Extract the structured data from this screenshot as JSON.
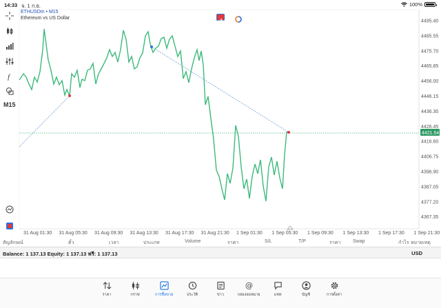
{
  "status": {
    "time": "14:33",
    "date": "จ. 1 ก.ย.",
    "battery": "100%",
    "battery_level": 1.0
  },
  "chart": {
    "symbol": "ETHUSDm • M15",
    "description": "Ethereum vs US Dollar",
    "timeframe": "M15",
    "current_price": "4421.54",
    "price_labels": [
      "4495.40",
      "4485.55",
      "4475.70",
      "4465.85",
      "4456.00",
      "4446.15",
      "4436.30",
      "4426.45",
      "4416.60",
      "4406.75",
      "4396.90",
      "4387.05",
      "4377.20",
      "4367.35"
    ],
    "time_labels": [
      "31 Aug 01:30",
      "31 Aug 05:30",
      "31 Aug 09:30",
      "31 Aug 13:30",
      "31 Aug 17:30",
      "31 Aug 21:30",
      "1 Sep 01:30",
      "1 Sep 05:30",
      "1 Sep 09:30",
      "1 Sep 13:30",
      "1 Sep 17:30",
      "1 Sep 21:30"
    ],
    "line_color": "#3bb97a",
    "price_tag_color": "#2e9a63"
  },
  "columns": [
    "สัญลักษณ์",
    "ตั๋ว",
    "เวลา",
    "ประเภท",
    "Volume",
    "ราคา",
    "S/L",
    "T/P",
    "ราคา",
    "Swap",
    "กำไร",
    "หมายเหตุ"
  ],
  "balance": {
    "text": "Balance: 1 137.13 Equity: 1 137.13 ฟรี: 1 137.13",
    "currency": "USD"
  },
  "nav": [
    {
      "label": "ราคา",
      "icon": "quotes-icon"
    },
    {
      "label": "กราฟ",
      "icon": "candles-icon"
    },
    {
      "label": "การซื้อขาย",
      "icon": "trade-icon"
    },
    {
      "label": "ประวัติ",
      "icon": "history-icon"
    },
    {
      "label": "ข่าว",
      "icon": "news-icon"
    },
    {
      "label": "กล่องจดหมาย",
      "icon": "mailbox-icon"
    },
    {
      "label": "แชท",
      "icon": "chat-icon"
    },
    {
      "label": "บัญชี",
      "icon": "account-icon"
    },
    {
      "label": "การตั้งค่า",
      "icon": "settings-icon"
    }
  ]
}
